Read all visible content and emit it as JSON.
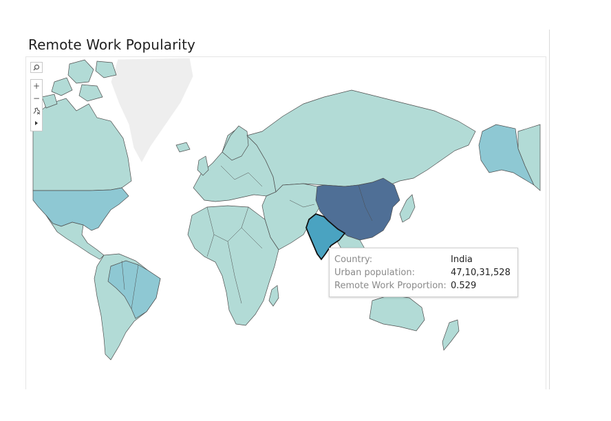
{
  "title": "Remote Work Popularity",
  "colors": {
    "low": "#b2dbd6",
    "medium": "#8ec8d3",
    "india": "#4aa3c1",
    "high": "#4f6f96",
    "greenland": "#eeeeee",
    "border": "#4b4b4b",
    "ocean": "#ffffff"
  },
  "map": {
    "legend_scale": "Remote Work Proportion",
    "highlighted_country": "India",
    "regions": [
      {
        "name": "China",
        "shade": "high"
      },
      {
        "name": "India",
        "shade": "india"
      },
      {
        "name": "United States",
        "shade": "medium"
      },
      {
        "name": "Brazil",
        "shade": "medium"
      },
      {
        "name": "Alaska",
        "shade": "medium"
      },
      {
        "name": "Canada",
        "shade": "low"
      },
      {
        "name": "Russia",
        "shade": "low"
      },
      {
        "name": "Greenland",
        "shade": "greenland"
      }
    ]
  },
  "controls": {
    "search_icon": "search-icon",
    "zoom_in_icon": "plus-icon",
    "zoom_out_icon": "minus-icon",
    "reset_icon": "pin-reset-icon",
    "expand_icon": "play-arrow-icon"
  },
  "tooltip": {
    "rows": [
      {
        "label": "Country:",
        "value": "India"
      },
      {
        "label": "Urban population:",
        "value": "47,10,31,528"
      },
      {
        "label": "Remote Work Proportion:",
        "value": "0.529"
      }
    ]
  }
}
